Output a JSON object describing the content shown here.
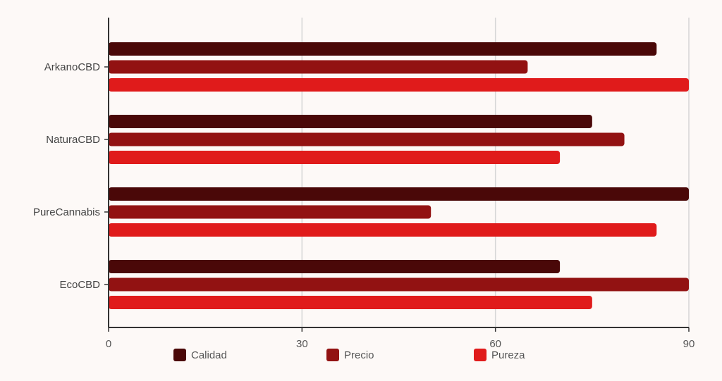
{
  "chart_data": {
    "type": "bar",
    "orientation": "horizontal",
    "categories": [
      "ArkanoCBD",
      "NaturaCBD",
      "PureCannabis",
      "EcoCBD"
    ],
    "series": [
      {
        "name": "Calidad",
        "color": "#4a0808",
        "values": [
          85,
          75,
          90,
          70
        ]
      },
      {
        "name": "Precio",
        "color": "#921212",
        "values": [
          65,
          80,
          50,
          90
        ]
      },
      {
        "name": "Pureza",
        "color": "#e01b1b",
        "values": [
          90,
          70,
          85,
          75
        ]
      }
    ],
    "xlim": [
      0,
      90
    ],
    "xticks": [
      0,
      30,
      60,
      90
    ],
    "grid": true,
    "legend_position": "bottom",
    "title": "",
    "xlabel": "",
    "ylabel": ""
  }
}
